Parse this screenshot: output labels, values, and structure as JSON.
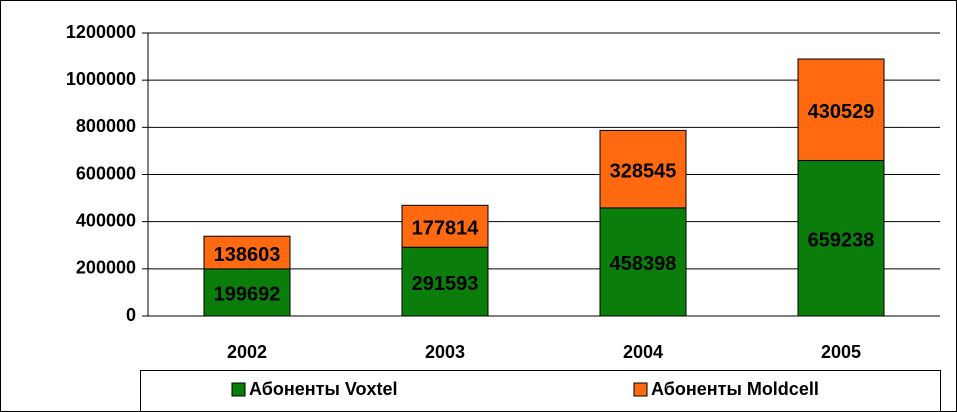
{
  "chart_data": {
    "type": "stacked_bar",
    "categories": [
      "2002",
      "2003",
      "2004",
      "2005"
    ],
    "series": [
      {
        "name": "Абоненты Voxtel",
        "color": "#0b7d0b",
        "values": [
          199692,
          291593,
          458398,
          659238
        ]
      },
      {
        "name": "Абоненты Moldcell",
        "color": "#ff6a10",
        "values": [
          138603,
          177814,
          328545,
          430529
        ]
      }
    ],
    "ylim": [
      0,
      1200000
    ],
    "yticks": [
      0,
      200000,
      400000,
      600000,
      800000,
      1000000,
      1200000
    ],
    "grid": true,
    "legend": "bottom"
  }
}
